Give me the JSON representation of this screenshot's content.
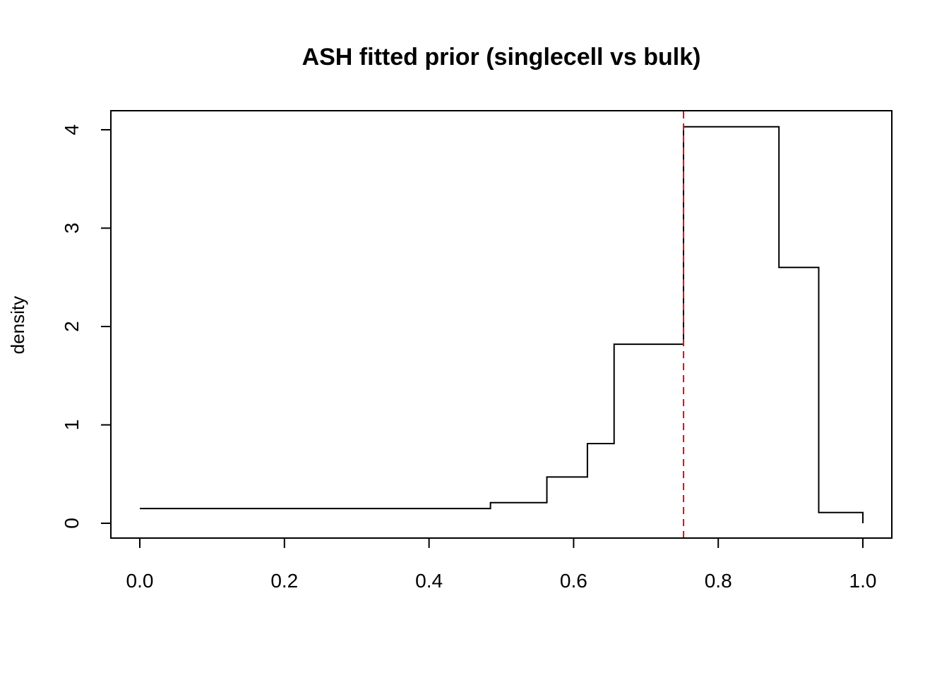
{
  "chart_data": {
    "type": "line",
    "title": "ASH fitted prior (singlecell vs bulk)",
    "xlabel": "",
    "ylabel": "density",
    "xlim": [
      0,
      1
    ],
    "ylim": [
      0,
      4
    ],
    "x_ticks": [
      "0.0",
      "0.2",
      "0.4",
      "0.6",
      "0.8",
      "1.0"
    ],
    "y_ticks": [
      "0",
      "1",
      "2",
      "3",
      "4"
    ],
    "series": [
      {
        "color": "#000000",
        "style": "step",
        "x": [
          0.0,
          0.485,
          0.485,
          0.563,
          0.563,
          0.619,
          0.619,
          0.656,
          0.656,
          0.752,
          0.752,
          0.884,
          0.884,
          0.939,
          0.939,
          1.0,
          1.0
        ],
        "y": [
          0.15,
          0.15,
          0.21,
          0.21,
          0.47,
          0.47,
          0.81,
          0.81,
          1.82,
          1.82,
          4.03,
          4.03,
          2.6,
          2.6,
          0.11,
          0.11,
          0.0
        ]
      }
    ],
    "vline": {
      "x": 0.752,
      "color": "#e8000b",
      "style": "dashed"
    },
    "grid": false,
    "legend": "none"
  }
}
